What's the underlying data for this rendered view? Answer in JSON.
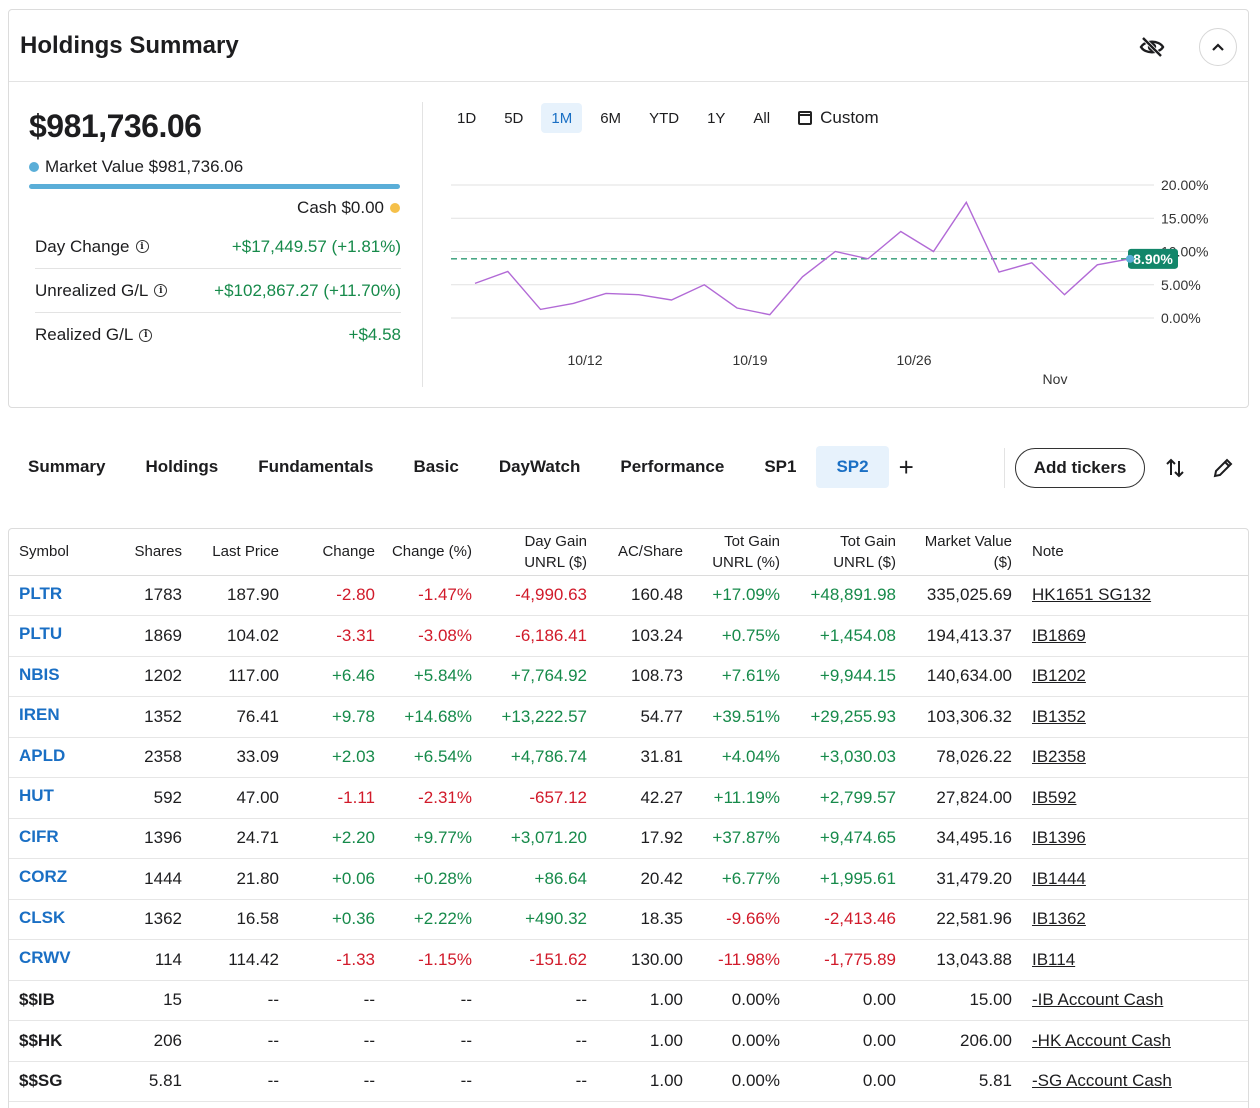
{
  "summary": {
    "title": "Holdings Summary",
    "total_value": "$981,736.06",
    "market_value_label": "Market Value $981,736.06",
    "cash_label": "Cash $0.00",
    "stats": [
      {
        "label": "Day Change",
        "value": "+$17,449.57 (+1.81%)"
      },
      {
        "label": "Unrealized G/L",
        "value": "+$102,867.27 (+11.70%)"
      },
      {
        "label": "Realized G/L",
        "value": "+$4.58"
      }
    ],
    "colors": {
      "market_value": "#5aaed8",
      "cash": "#f5c04a",
      "positive": "#168a4a",
      "negative": "#d11a2a",
      "accent": "#1a6fc4"
    },
    "icons": {
      "visibility": "eye-slash-icon",
      "collapse": "chevron-up-icon"
    }
  },
  "ranges": [
    "1D",
    "5D",
    "1M",
    "6M",
    "YTD",
    "1Y",
    "All"
  ],
  "active_range": "1M",
  "custom_label": "Custom",
  "chart_data": {
    "type": "line",
    "x": [
      "10/8",
      "10/9",
      "10/10",
      "10/13",
      "10/14",
      "10/15",
      "10/16",
      "10/17",
      "10/20",
      "10/21",
      "10/22",
      "10/23",
      "10/24",
      "10/27",
      "10/28",
      "10/29",
      "10/30",
      "10/31",
      "11/3",
      "11/4",
      "11/5"
    ],
    "series": [
      {
        "values": [
          5.2,
          7.0,
          1.3,
          2.2,
          3.7,
          3.5,
          2.7,
          5.0,
          1.5,
          0.5,
          6.2,
          10.0,
          8.9,
          13.0,
          10.0,
          17.4,
          6.9,
          8.3,
          3.5,
          8.0,
          8.9
        ]
      }
    ],
    "current_label": "8.90%",
    "reference_value": 8.9,
    "x_tick_labels": [
      "10/12",
      "10/19",
      "10/26",
      "Nov"
    ],
    "y_tick_labels": [
      "20.00%",
      "15.00%",
      "10.00%",
      "5.00%",
      "0.00%"
    ],
    "ylim": [
      0,
      20
    ]
  },
  "tabs": [
    "Summary",
    "Holdings",
    "Fundamentals",
    "Basic",
    "DayWatch",
    "Performance",
    "SP1",
    "SP2"
  ],
  "active_tab": "SP2",
  "add_tickers_label": "Add tickers",
  "table": {
    "headers": [
      "Symbol",
      "Shares",
      "Last Price",
      "Change",
      "Change (%)",
      "Day Gain UNRL ($)",
      "AC/Share",
      "Tot Gain UNRL (%)",
      "Tot Gain UNRL ($)",
      "Market Value ($)",
      "Note"
    ],
    "header_lines": {
      "day_gain": [
        "Day Gain",
        "UNRL ($)"
      ],
      "tot_gain_pct": [
        "Tot Gain",
        "UNRL (%)"
      ],
      "tot_gain_usd": [
        "Tot Gain",
        "UNRL ($)"
      ],
      "market_value": [
        "Market Value",
        "($)"
      ]
    },
    "rows": [
      [
        "PLTR",
        "1783",
        "187.90",
        "-2.80",
        "-1.47%",
        "-4,990.63",
        "160.48",
        "+17.09%",
        "+48,891.98",
        "335,025.69",
        "HK1651 SG132"
      ],
      [
        "PLTU",
        "1869",
        "104.02",
        "-3.31",
        "-3.08%",
        "-6,186.41",
        "103.24",
        "+0.75%",
        "+1,454.08",
        "194,413.37",
        "IB1869"
      ],
      [
        "NBIS",
        "1202",
        "117.00",
        "+6.46",
        "+5.84%",
        "+7,764.92",
        "108.73",
        "+7.61%",
        "+9,944.15",
        "140,634.00",
        "IB1202"
      ],
      [
        "IREN",
        "1352",
        "76.41",
        "+9.78",
        "+14.68%",
        "+13,222.57",
        "54.77",
        "+39.51%",
        "+29,255.93",
        "103,306.32",
        "IB1352"
      ],
      [
        "APLD",
        "2358",
        "33.09",
        "+2.03",
        "+6.54%",
        "+4,786.74",
        "31.81",
        "+4.04%",
        "+3,030.03",
        "78,026.22",
        "IB2358"
      ],
      [
        "HUT",
        "592",
        "47.00",
        "-1.11",
        "-2.31%",
        "-657.12",
        "42.27",
        "+11.19%",
        "+2,799.57",
        "27,824.00",
        "IB592"
      ],
      [
        "CIFR",
        "1396",
        "24.71",
        "+2.20",
        "+9.77%",
        "+3,071.20",
        "17.92",
        "+37.87%",
        "+9,474.65",
        "34,495.16",
        "IB1396"
      ],
      [
        "CORZ",
        "1444",
        "21.80",
        "+0.06",
        "+0.28%",
        "+86.64",
        "20.42",
        "+6.77%",
        "+1,995.61",
        "31,479.20",
        "IB1444"
      ],
      [
        "CLSK",
        "1362",
        "16.58",
        "+0.36",
        "+2.22%",
        "+490.32",
        "18.35",
        "-9.66%",
        "-2,413.46",
        "22,581.96",
        "IB1362"
      ],
      [
        "CRWV",
        "114",
        "114.42",
        "-1.33",
        "-1.15%",
        "-151.62",
        "130.00",
        "-11.98%",
        "-1,775.89",
        "13,043.88",
        "IB114"
      ],
      [
        "$$IB",
        "15",
        "--",
        "--",
        "--",
        "--",
        "1.00",
        "0.00%",
        "0.00",
        "15.00",
        "-IB Account Cash"
      ],
      [
        "$$HK",
        "206",
        "--",
        "--",
        "--",
        "--",
        "1.00",
        "0.00%",
        "0.00",
        "206.00",
        "-HK Account Cash"
      ],
      [
        "$$SG",
        "5.81",
        "--",
        "--",
        "--",
        "--",
        "1.00",
        "0.00%",
        "0.00",
        "5.81",
        "-SG Account Cash"
      ]
    ]
  }
}
